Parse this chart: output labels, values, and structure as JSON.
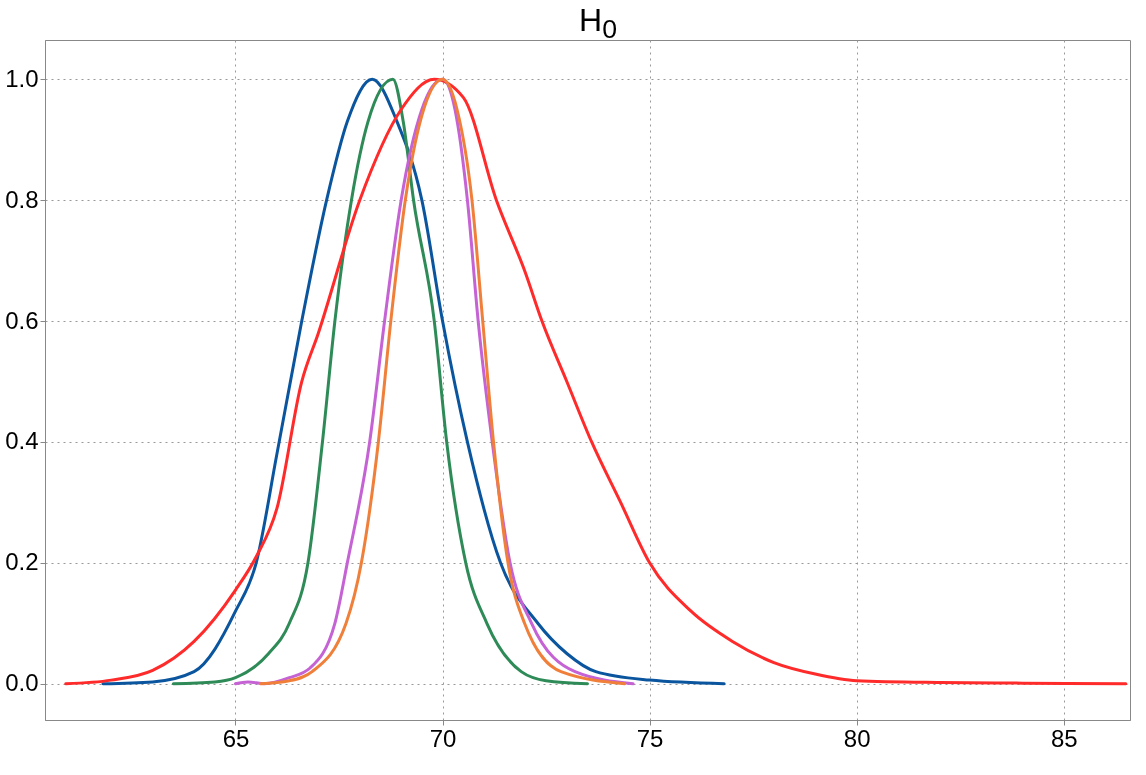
{
  "chart_data": {
    "type": "line",
    "title": "H$_{0}$",
    "xlim": [
      60.4,
      86.6
    ],
    "xticks": [
      65,
      70,
      75,
      80,
      85
    ],
    "ylim": [
      -0.06,
      1.065
    ],
    "yticks": [
      {
        "value": 0,
        "label": "0.0"
      },
      0.2,
      0.4,
      0.6,
      0.8,
      {
        "value": 1,
        "label": "1.0"
      }
    ],
    "grid": true,
    "line_style": "solid",
    "series": [
      {
        "color": "#0a559e",
        "x": [
          61.8,
          63,
          64,
          65,
          65.5,
          66,
          66.6,
          67.2,
          67.7,
          68.3,
          68.9,
          69.5,
          70,
          70.6,
          71.4,
          72.3,
          73,
          73.7,
          75,
          76.8
        ],
        "values": [
          0,
          0.003,
          0.02,
          0.12,
          0.2,
          0.38,
          0.6,
          0.8,
          0.93,
          1,
          0.93,
          0.8,
          0.6,
          0.4,
          0.2,
          0.1,
          0.05,
          0.02,
          0.006,
          0
        ]
      },
      {
        "color": "#2e8b57",
        "x": [
          63.5,
          64.5,
          65,
          65.8,
          66.3,
          66.75,
          67.1,
          67.4,
          67.8,
          68.2,
          68.8,
          69.05,
          69.3,
          69.8,
          70.1,
          70.56,
          71.07,
          71.9,
          72.5,
          73.5
        ],
        "values": [
          0,
          0.003,
          0.01,
          0.05,
          0.1,
          0.2,
          0.4,
          0.6,
          0.8,
          0.93,
          1,
          0.93,
          0.8,
          0.6,
          0.4,
          0.2,
          0.1,
          0.02,
          0.005,
          0
        ]
      },
      {
        "color": "#ff2a2a",
        "x": [
          60.9,
          62,
          63,
          64,
          65,
          65.5,
          66,
          66.6,
          67,
          68,
          69,
          69.8,
          70.5,
          71.3,
          72,
          72.4,
          73,
          73.6,
          74.3,
          75,
          76,
          77,
          78,
          79,
          80,
          82,
          84,
          86.5
        ],
        "values": [
          0,
          0.006,
          0.022,
          0.07,
          0.155,
          0.21,
          0.29,
          0.5,
          0.58,
          0.8,
          0.95,
          1,
          0.97,
          0.8,
          0.68,
          0.6,
          0.5,
          0.4,
          0.3,
          0.2,
          0.12,
          0.07,
          0.035,
          0.016,
          0.005,
          0.002,
          0.001,
          0
        ]
      },
      {
        "color": "#c562d4",
        "x": [
          65,
          65.3,
          65.7,
          66.3,
          66.8,
          67.4,
          67.7,
          68.24,
          68.6,
          69,
          69.5,
          70,
          70.3,
          70.6,
          70.86,
          71.2,
          71.63,
          72.15,
          73.2,
          74.6
        ],
        "values": [
          0,
          0.003,
          0,
          0.01,
          0.026,
          0.1,
          0.2,
          0.4,
          0.6,
          0.8,
          0.95,
          1,
          0.95,
          0.8,
          0.6,
          0.4,
          0.2,
          0.1,
          0.02,
          0
        ]
      },
      {
        "color": "#f07f3a",
        "x": [
          65.6,
          66.3,
          66.85,
          67.67,
          68.04,
          68.45,
          68.75,
          69.1,
          69.5,
          70,
          70.35,
          70.71,
          70.97,
          71.23,
          71.58,
          71.98,
          72.86,
          74.4
        ],
        "values": [
          0,
          0.005,
          0.02,
          0.1,
          0.2,
          0.4,
          0.6,
          0.8,
          0.94,
          1,
          0.95,
          0.8,
          0.6,
          0.4,
          0.2,
          0.1,
          0.02,
          0
        ]
      }
    ]
  }
}
